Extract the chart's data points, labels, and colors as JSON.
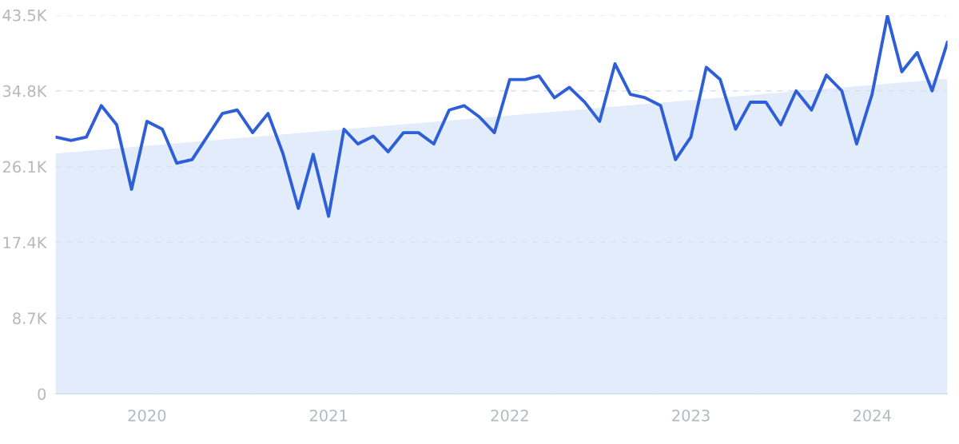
{
  "chart_data": {
    "type": "line",
    "x": [
      "2019-07",
      "2019-08",
      "2019-09",
      "2019-10",
      "2019-11",
      "2019-12",
      "2020-01",
      "2020-02",
      "2020-03",
      "2020-04",
      "2020-05",
      "2020-06",
      "2020-07",
      "2020-08",
      "2020-09",
      "2020-10",
      "2020-11",
      "2020-12",
      "2021-01",
      "2021-02",
      "2021-03",
      "2021-04",
      "2021-05",
      "2021-06",
      "2021-07",
      "2021-08",
      "2021-09",
      "2021-10",
      "2021-11",
      "2021-12",
      "2022-01",
      "2022-02",
      "2022-03",
      "2022-04",
      "2022-05",
      "2022-06",
      "2022-07",
      "2022-08",
      "2022-09",
      "2022-10",
      "2022-11",
      "2022-12",
      "2023-01",
      "2023-02",
      "2023-03",
      "2023-04",
      "2023-05",
      "2023-06",
      "2023-07",
      "2023-08",
      "2023-09",
      "2023-10",
      "2023-11",
      "2023-12",
      "2024-01",
      "2024-02",
      "2024-03",
      "2024-04",
      "2024-05",
      "2024-06"
    ],
    "series": [
      {
        "type": "area",
        "color": "#e2ecfb",
        "x": [
          "2019-07",
          "2024-06"
        ],
        "values": [
          27600,
          36200
        ]
      },
      {
        "color": "#2f5fd6",
        "values": [
          29500,
          29100,
          29500,
          33100,
          30900,
          23500,
          31300,
          30400,
          26500,
          26900,
          29500,
          32200,
          32600,
          30000,
          32200,
          27600,
          21300,
          27500,
          20400,
          30400,
          28700,
          29600,
          27800,
          30000,
          30000,
          28700,
          32600,
          33100,
          31800,
          30000,
          36100,
          36100,
          36500,
          34000,
          35200,
          33500,
          31300,
          37900,
          34400,
          34000,
          33100,
          26900,
          29500,
          37500,
          36100,
          30400,
          33500,
          33500,
          30900,
          34800,
          32600,
          36600,
          34800,
          28700,
          34400,
          43400,
          37000,
          39200,
          34800,
          40400
        ]
      }
    ],
    "xlim": [
      "2019-07",
      "2024-06"
    ],
    "xticks": [
      "2020",
      "2021",
      "2022",
      "2023",
      "2024"
    ],
    "ylim": [
      0,
      43500
    ],
    "yticks": [
      0,
      {
        "value": 8700,
        "label": "8.7K"
      },
      {
        "value": 17400,
        "label": "17.4K"
      },
      {
        "value": 26100,
        "label": "26.1K"
      },
      {
        "value": 34800,
        "label": "34.8K"
      },
      {
        "value": 43500,
        "label": "43.5K"
      }
    ],
    "grid": "y",
    "line_style": "solid",
    "marker": "none"
  }
}
